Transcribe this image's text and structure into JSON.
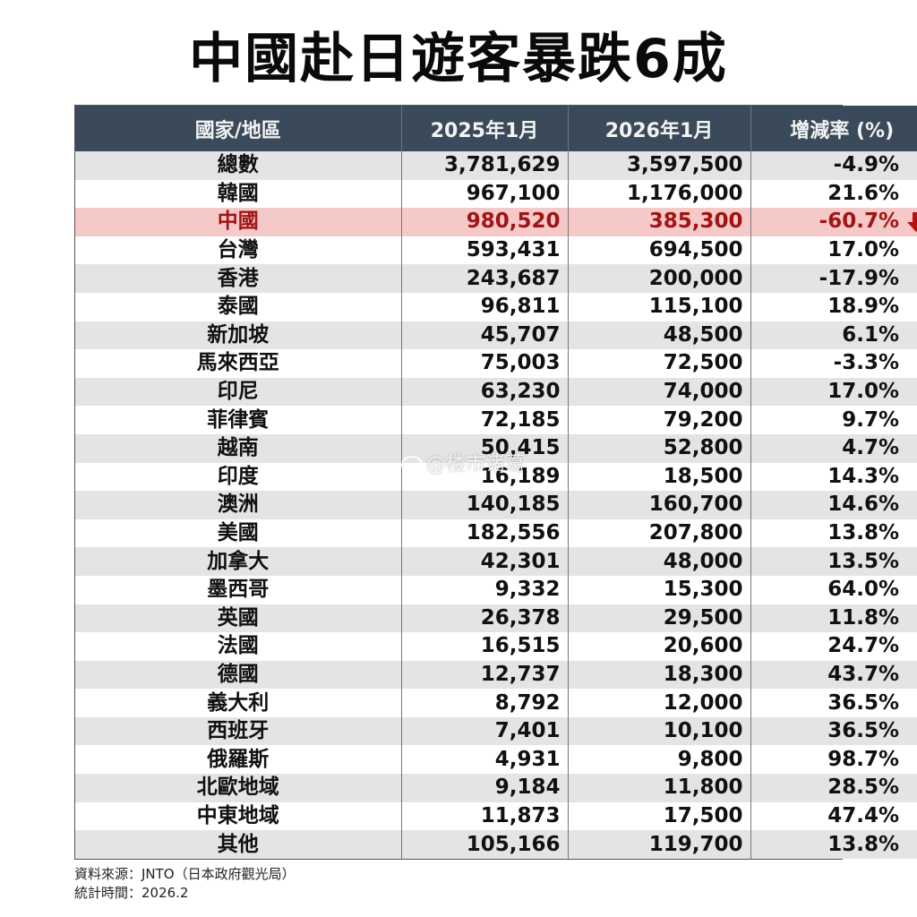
{
  "title": "中國赴日遊客暴跌6成",
  "table": {
    "headers": [
      "國家/地區",
      "2025年1月",
      "2026年1月",
      "增減率 (%)"
    ],
    "rows": [
      {
        "region": "總數",
        "jan2025": "3,781,629",
        "jan2026": "3,597,500",
        "change": "-4.9%"
      },
      {
        "region": "韓國",
        "jan2025": "967,100",
        "jan2026": "1,176,000",
        "change": "21.6%"
      },
      {
        "region": "中國",
        "jan2025": "980,520",
        "jan2026": "385,300",
        "change": "-60.7%",
        "highlight": true,
        "icon": "down-arrow-icon"
      },
      {
        "region": "台灣",
        "jan2025": "593,431",
        "jan2026": "694,500",
        "change": "17.0%"
      },
      {
        "region": "香港",
        "jan2025": "243,687",
        "jan2026": "200,000",
        "change": "-17.9%"
      },
      {
        "region": "泰國",
        "jan2025": "96,811",
        "jan2026": "115,100",
        "change": "18.9%"
      },
      {
        "region": "新加坡",
        "jan2025": "45,707",
        "jan2026": "48,500",
        "change": "6.1%"
      },
      {
        "region": "馬來西亞",
        "jan2025": "75,003",
        "jan2026": "72,500",
        "change": "-3.3%"
      },
      {
        "region": "印尼",
        "jan2025": "63,230",
        "jan2026": "74,000",
        "change": "17.0%"
      },
      {
        "region": "菲律賓",
        "jan2025": "72,185",
        "jan2026": "79,200",
        "change": "9.7%"
      },
      {
        "region": "越南",
        "jan2025": "50,415",
        "jan2026": "52,800",
        "change": "4.7%"
      },
      {
        "region": "印度",
        "jan2025": "16,189",
        "jan2026": "18,500",
        "change": "14.3%"
      },
      {
        "region": "澳洲",
        "jan2025": "140,185",
        "jan2026": "160,700",
        "change": "14.6%"
      },
      {
        "region": "美國",
        "jan2025": "182,556",
        "jan2026": "207,800",
        "change": "13.8%"
      },
      {
        "region": "加拿大",
        "jan2025": "42,301",
        "jan2026": "48,000",
        "change": "13.5%"
      },
      {
        "region": "墨西哥",
        "jan2025": "9,332",
        "jan2026": "15,300",
        "change": "64.0%"
      },
      {
        "region": "英國",
        "jan2025": "26,378",
        "jan2026": "29,500",
        "change": "11.8%"
      },
      {
        "region": "法國",
        "jan2025": "16,515",
        "jan2026": "20,600",
        "change": "24.7%"
      },
      {
        "region": "德國",
        "jan2025": "12,737",
        "jan2026": "18,300",
        "change": "43.7%"
      },
      {
        "region": "義大利",
        "jan2025": "8,792",
        "jan2026": "12,000",
        "change": "36.5%"
      },
      {
        "region": "西班牙",
        "jan2025": "7,401",
        "jan2026": "10,100",
        "change": "36.5%"
      },
      {
        "region": "俄羅斯",
        "jan2025": "4,931",
        "jan2026": "9,800",
        "change": "98.7%"
      },
      {
        "region": "北歐地域",
        "jan2025": "9,184",
        "jan2026": "11,800",
        "change": "28.5%"
      },
      {
        "region": "中東地域",
        "jan2025": "11,873",
        "jan2026": "17,500",
        "change": "47.4%"
      },
      {
        "region": "其他",
        "jan2025": "105,166",
        "jan2026": "119,700",
        "change": "13.8%"
      }
    ]
  },
  "watermark": "@楼市诸葛",
  "footer": {
    "source": "資料來源：JNTO（日本政府觀光局）",
    "date": "統計時間：2026.2"
  },
  "colors": {
    "header_bg": "#3a4a5a",
    "highlight_bg": "#f6c9c9",
    "highlight_text": "#a01414",
    "stripe": "#e4e4e4"
  }
}
